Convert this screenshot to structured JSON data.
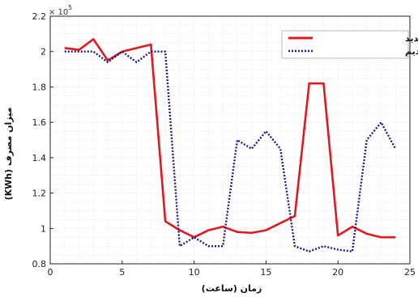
{
  "chart_data": {
    "type": "line",
    "xlabel": "زمان (ساعت)",
    "ylabel": "میزان مصرف (KWh)",
    "multiplier_base": "× 10",
    "multiplier_exp": "5",
    "xlim": [
      0,
      25
    ],
    "ylim": [
      0.8,
      2.2
    ],
    "xticks": [
      0,
      5,
      10,
      15,
      20,
      25
    ],
    "yticks": [
      0.8,
      1.0,
      1.2,
      1.4,
      1.6,
      1.8,
      2.0,
      2.2
    ],
    "xtick_labels": [
      "0",
      "5",
      "10",
      "15",
      "20",
      "25"
    ],
    "ytick_labels": [
      "0.8",
      "1",
      "1.2",
      "1.4",
      "1.6",
      "1.8",
      "2",
      "2.2"
    ],
    "grid": true,
    "legend_position": "top-right",
    "x": [
      1,
      2,
      3,
      4,
      5,
      6,
      7,
      8,
      9,
      10,
      11,
      12,
      13,
      14,
      15,
      16,
      17,
      18,
      19,
      20,
      21,
      22,
      23,
      24
    ],
    "series": [
      {
        "name": "منحنی بار جدید",
        "color": "#e0191f",
        "style": "solid",
        "values": [
          2.02,
          2.01,
          2.07,
          1.95,
          2.0,
          2.02,
          2.04,
          1.04,
          0.99,
          0.95,
          0.99,
          1.01,
          0.98,
          0.975,
          0.99,
          1.03,
          1.07,
          1.82,
          1.82,
          0.96,
          1.01,
          0.97,
          0.95,
          0.95
        ]
      },
      {
        "name": "منحنی بار قدیم",
        "color": "#1a1a8c",
        "style": "dotted",
        "values": [
          2.0,
          2.0,
          2.0,
          1.94,
          2.0,
          1.94,
          2.0,
          2.0,
          0.9,
          0.95,
          0.9,
          0.9,
          1.5,
          1.45,
          1.55,
          1.45,
          0.9,
          0.87,
          0.9,
          0.88,
          0.87,
          1.5,
          1.6,
          1.45
        ]
      }
    ]
  }
}
